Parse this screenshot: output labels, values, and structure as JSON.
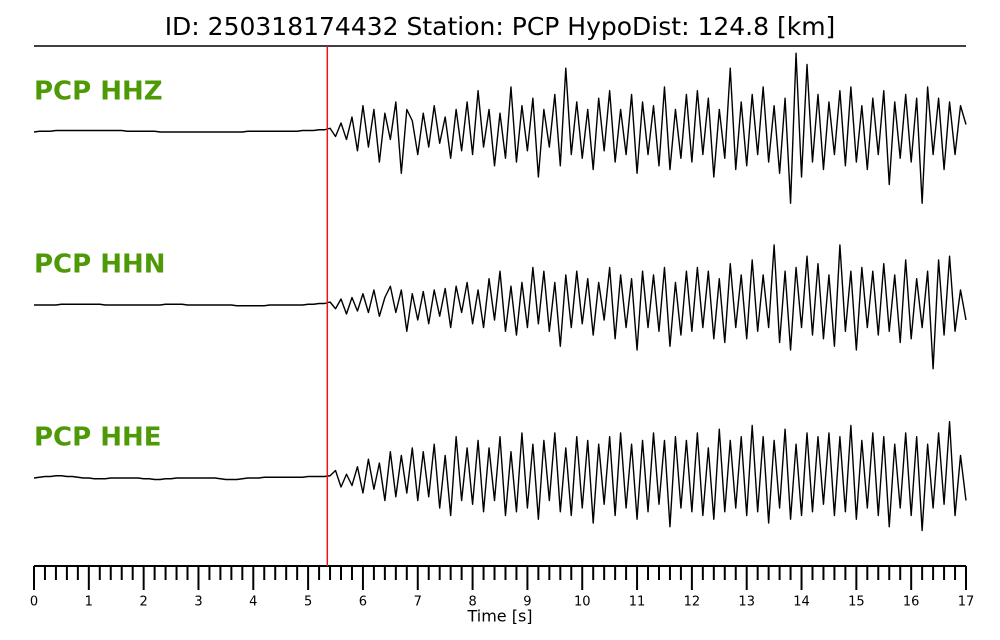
{
  "chart_data": {
    "type": "line",
    "title": "ID: 250318174432   Station: PCP   HypoDist:   124.8 [km]",
    "xlabel": "Time [s]",
    "xlim": [
      0,
      17
    ],
    "xticks": [
      0,
      1,
      2,
      3,
      4,
      5,
      6,
      7,
      8,
      9,
      10,
      11,
      12,
      13,
      14,
      15,
      16,
      17
    ],
    "xminorticks": [
      0.2,
      0.4,
      0.6,
      0.8,
      1.2,
      1.4,
      1.6,
      1.8,
      2.2,
      2.4,
      2.6,
      2.8,
      3.2,
      3.4,
      3.6,
      3.8,
      4.2,
      4.4,
      4.6,
      4.8,
      5.2,
      5.4,
      5.6,
      5.8,
      6.2,
      6.4,
      6.6,
      6.8,
      7.2,
      7.4,
      7.6,
      7.8,
      8.2,
      8.4,
      8.6,
      8.8,
      9.2,
      9.4,
      9.6,
      9.8,
      10.2,
      10.4,
      10.6,
      10.8,
      11.2,
      11.4,
      11.6,
      11.8,
      12.2,
      12.4,
      12.6,
      12.8,
      13.2,
      13.4,
      13.6,
      13.8,
      14.2,
      14.4,
      14.6,
      14.8,
      15.2,
      15.4,
      15.6,
      15.8,
      16.2,
      16.4,
      16.6,
      16.8
    ],
    "pick_x": 5.35,
    "pick_color": "#e8141a",
    "label_color": "#4e9a06",
    "x": [
      0,
      0.1,
      0.2,
      0.3,
      0.4,
      0.5,
      0.6,
      0.7,
      0.8,
      0.9,
      1,
      1.1,
      1.2,
      1.3,
      1.4,
      1.5,
      1.6,
      1.7,
      1.8,
      1.9,
      2,
      2.1,
      2.2,
      2.3,
      2.4,
      2.5,
      2.6,
      2.7,
      2.8,
      2.9,
      3,
      3.1,
      3.2,
      3.3,
      3.4,
      3.5,
      3.6,
      3.7,
      3.8,
      3.9,
      4,
      4.1,
      4.2,
      4.3,
      4.4,
      4.5,
      4.6,
      4.7,
      4.8,
      4.9,
      5,
      5.1,
      5.2,
      5.3,
      5.4,
      5.5,
      5.6,
      5.7,
      5.8,
      5.9,
      6,
      6.1,
      6.2,
      6.3,
      6.4,
      6.5,
      6.6,
      6.7,
      6.8,
      6.9,
      7,
      7.1,
      7.2,
      7.3,
      7.4,
      7.5,
      7.6,
      7.7,
      7.8,
      7.9,
      8,
      8.1,
      8.2,
      8.3,
      8.4,
      8.5,
      8.6,
      8.7,
      8.8,
      8.9,
      9,
      9.1,
      9.2,
      9.3,
      9.4,
      9.5,
      9.6,
      9.7,
      9.8,
      9.9,
      10,
      10.1,
      10.2,
      10.3,
      10.4,
      10.5,
      10.6,
      10.7,
      10.8,
      10.9,
      11,
      11.1,
      11.2,
      11.3,
      11.4,
      11.5,
      11.6,
      11.7,
      11.8,
      11.9,
      12,
      12.1,
      12.2,
      12.3,
      12.4,
      12.5,
      12.6,
      12.7,
      12.8,
      12.9,
      13,
      13.1,
      13.2,
      13.3,
      13.4,
      13.5,
      13.6,
      13.7,
      13.8,
      13.9,
      14,
      14.1,
      14.2,
      14.3,
      14.4,
      14.5,
      14.6,
      14.7,
      14.8,
      14.9,
      15,
      15.1,
      15.2,
      15.3,
      15.4,
      15.5,
      15.6,
      15.7,
      15.8,
      15.9,
      16,
      16.1,
      16.2,
      16.3,
      16.4,
      16.5,
      16.6,
      16.7,
      16.8,
      16.9,
      17
    ],
    "series": [
      {
        "name": "PCP HHZ",
        "color": "#000000",
        "values": [
          0,
          0.01,
          0.01,
          0.01,
          0.02,
          0.02,
          0.02,
          0.02,
          0.02,
          0.02,
          0.02,
          0.02,
          0.02,
          0.02,
          0.02,
          0.02,
          0.02,
          0.01,
          0.01,
          0.01,
          0.01,
          0.01,
          0.01,
          0,
          0,
          0,
          0,
          0,
          0,
          0,
          0,
          0,
          0,
          0,
          0,
          0,
          0,
          0,
          0,
          0.01,
          0.01,
          0.01,
          0.01,
          0.01,
          0.01,
          0.01,
          0.01,
          0.01,
          0.01,
          0.02,
          0.02,
          0.02,
          0.03,
          0.03,
          0.05,
          -0.06,
          0.12,
          -0.1,
          0.2,
          -0.25,
          0.35,
          -0.2,
          0.3,
          -0.4,
          0.25,
          -0.1,
          0.4,
          -0.55,
          0.3,
          0.15,
          -0.3,
          0.25,
          -0.2,
          0.35,
          -0.15,
          0.2,
          -0.35,
          0.3,
          -0.25,
          0.4,
          -0.3,
          0.55,
          -0.2,
          0.3,
          -0.45,
          0.25,
          -0.35,
          0.6,
          -0.4,
          0.35,
          -0.25,
          0.45,
          -0.6,
          0.3,
          -0.2,
          0.5,
          -0.45,
          0.85,
          -0.3,
          0.4,
          -0.35,
          0.3,
          -0.5,
          0.45,
          -0.25,
          0.55,
          -0.4,
          0.3,
          -0.3,
          0.5,
          -0.55,
          0.4,
          -0.3,
          0.35,
          -0.45,
          0.6,
          -0.5,
          0.3,
          -0.35,
          0.5,
          -0.4,
          0.55,
          -0.3,
          0.45,
          -0.6,
          0.3,
          -0.35,
          0.85,
          -0.5,
          0.4,
          -0.45,
          0.5,
          -0.3,
          0.6,
          -0.4,
          0.35,
          -0.55,
          0.45,
          -0.95,
          1.05,
          -0.6,
          0.9,
          -0.4,
          0.5,
          -0.5,
          0.4,
          -0.3,
          0.55,
          -0.45,
          0.6,
          -0.4,
          0.35,
          -0.5,
          0.45,
          -0.3,
          0.55,
          -0.7,
          0.4,
          -0.35,
          0.5,
          -0.4,
          0.45,
          -0.95,
          0.6,
          -0.3,
          0.45,
          -0.5,
          0.4,
          -0.3,
          0.35,
          0.1
        ]
      },
      {
        "name": "PCP HHN",
        "color": "#000000",
        "values": [
          0,
          0,
          0,
          0,
          0,
          0.01,
          0.01,
          0.01,
          0.01,
          0.01,
          0.01,
          0.01,
          0.01,
          0,
          0,
          0,
          0,
          0,
          0,
          0,
          0,
          0,
          0,
          0,
          0.01,
          0.01,
          0.01,
          0.01,
          0,
          0,
          0,
          0,
          0,
          0,
          0,
          0,
          0,
          -0.01,
          -0.01,
          -0.01,
          -0.01,
          -0.01,
          -0.01,
          0,
          0,
          0,
          0,
          0,
          0,
          0,
          0.01,
          0.01,
          0.02,
          0.02,
          0.04,
          -0.05,
          0.08,
          -0.12,
          0.1,
          -0.08,
          0.15,
          -0.1,
          0.2,
          -0.15,
          0.1,
          0.25,
          -0.1,
          0.2,
          -0.35,
          0.15,
          -0.2,
          0.18,
          -0.25,
          0.2,
          -0.15,
          0.22,
          -0.3,
          0.25,
          -0.1,
          0.3,
          -0.25,
          0.2,
          -0.3,
          0.35,
          -0.2,
          0.45,
          -0.35,
          0.25,
          -0.4,
          0.3,
          -0.3,
          0.5,
          -0.25,
          0.45,
          -0.35,
          0.3,
          -0.55,
          0.4,
          -0.3,
          0.45,
          -0.25,
          0.35,
          -0.4,
          0.3,
          -0.2,
          0.5,
          -0.45,
          0.4,
          -0.3,
          0.35,
          -0.6,
          0.45,
          -0.3,
          0.4,
          -0.35,
          0.5,
          -0.55,
          0.3,
          -0.4,
          0.45,
          -0.35,
          0.5,
          -0.3,
          0.45,
          -0.45,
          0.35,
          -0.5,
          0.55,
          -0.3,
          0.4,
          -0.45,
          0.6,
          -0.35,
          0.4,
          -0.3,
          0.8,
          -0.5,
          0.45,
          -0.6,
          0.5,
          -0.3,
          0.65,
          -0.4,
          0.55,
          -0.45,
          0.4,
          -0.55,
          0.8,
          -0.35,
          0.45,
          -0.6,
          0.5,
          -0.3,
          0.45,
          -0.4,
          0.55,
          -0.35,
          0.4,
          -0.5,
          0.6,
          -0.45,
          0.35,
          -0.3,
          0.45,
          -0.85,
          0.6,
          -0.4,
          0.65,
          -0.35,
          0.2,
          -0.2
        ]
      },
      {
        "name": "PCP HHE",
        "color": "#000000",
        "values": [
          0,
          0.01,
          0.02,
          0.02,
          0.03,
          0.03,
          0.02,
          0.02,
          0.01,
          0,
          0,
          -0.01,
          -0.01,
          -0.01,
          0,
          0,
          0,
          0,
          0,
          0,
          -0.01,
          -0.01,
          -0.02,
          -0.02,
          -0.01,
          -0.01,
          0,
          0,
          0,
          0,
          0,
          0,
          0,
          0,
          -0.01,
          -0.02,
          -0.02,
          -0.02,
          -0.01,
          0,
          0,
          0,
          0.01,
          0.01,
          0.01,
          0.01,
          0.01,
          0.01,
          0.01,
          0.01,
          0.02,
          0.02,
          0.02,
          0.02,
          0.03,
          0.1,
          -0.12,
          0.05,
          -0.1,
          0.15,
          -0.2,
          0.25,
          -0.15,
          0.2,
          -0.3,
          0.35,
          -0.25,
          0.3,
          -0.2,
          0.4,
          -0.3,
          0.35,
          -0.25,
          0.45,
          -0.4,
          0.3,
          -0.5,
          0.55,
          -0.3,
          0.4,
          -0.35,
          0.5,
          -0.45,
          0.4,
          -0.3,
          0.55,
          -0.5,
          0.35,
          -0.45,
          0.6,
          -0.4,
          0.45,
          -0.55,
          0.5,
          -0.3,
          0.6,
          -0.45,
          0.4,
          -0.5,
          0.55,
          -0.4,
          0.5,
          -0.6,
          0.45,
          -0.35,
          0.55,
          -0.5,
          0.6,
          -0.4,
          0.45,
          -0.55,
          0.5,
          -0.45,
          0.6,
          -0.35,
          0.5,
          -0.65,
          0.55,
          -0.4,
          0.5,
          -0.45,
          0.6,
          -0.5,
          0.4,
          -0.55,
          0.65,
          -0.45,
          0.5,
          -0.4,
          0.55,
          -0.5,
          0.7,
          -0.45,
          0.55,
          -0.6,
          0.5,
          -0.4,
          0.65,
          -0.55,
          0.45,
          -0.5,
          0.6,
          -0.45,
          0.55,
          -0.35,
          0.6,
          -0.5,
          0.55,
          -0.45,
          0.7,
          -0.55,
          0.5,
          -0.4,
          0.6,
          -0.5,
          0.55,
          -0.65,
          0.45,
          -0.4,
          0.6,
          -0.5,
          0.55,
          -0.7,
          0.45,
          -0.4,
          0.6,
          -0.35,
          0.75,
          -0.5,
          0.3,
          -0.3
        ]
      }
    ]
  }
}
